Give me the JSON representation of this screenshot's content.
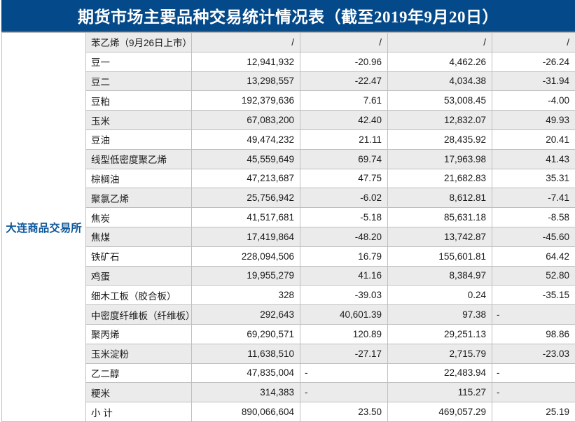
{
  "title": "期货市场主要品种交易统计情况表（截至2019年9月20日）",
  "exchange": "大连商品交易所",
  "colors": {
    "header_bg": "#04498A",
    "header_text": "#FFFFFF",
    "exchange_text": "#10589B",
    "alt_row_bg": "#EBEBEB",
    "grid_line": "#BFBFBF",
    "cell_text": "#1A1A1A"
  },
  "table": {
    "rows": [
      {
        "name": "苯乙烯（9月26日上市）",
        "volume": "/",
        "volume_chg": "/",
        "turnover": "/",
        "turnover_chg": "/"
      },
      {
        "name": "豆一",
        "volume": "12,941,932",
        "volume_chg": "-20.96",
        "turnover": "4,462.26",
        "turnover_chg": "-26.24"
      },
      {
        "name": "豆二",
        "volume": "13,298,557",
        "volume_chg": "-22.47",
        "turnover": "4,034.38",
        "turnover_chg": "-31.94"
      },
      {
        "name": "豆粕",
        "volume": "192,379,636",
        "volume_chg": "7.61",
        "turnover": "53,008.45",
        "turnover_chg": "-4.00"
      },
      {
        "name": "玉米",
        "volume": "67,083,200",
        "volume_chg": "42.40",
        "turnover": "12,832.07",
        "turnover_chg": "49.93"
      },
      {
        "name": "豆油",
        "volume": "49,474,232",
        "volume_chg": "21.11",
        "turnover": "28,435.92",
        "turnover_chg": "20.41"
      },
      {
        "name": "线型低密度聚乙烯",
        "volume": "45,559,649",
        "volume_chg": "69.74",
        "turnover": "17,963.98",
        "turnover_chg": "41.43"
      },
      {
        "name": "棕榈油",
        "volume": "47,213,687",
        "volume_chg": "47.75",
        "turnover": "21,682.83",
        "turnover_chg": "35.31"
      },
      {
        "name": "聚氯乙烯",
        "volume": "25,756,942",
        "volume_chg": "-6.02",
        "turnover": "8,612.81",
        "turnover_chg": "-7.41"
      },
      {
        "name": "焦炭",
        "volume": "41,517,681",
        "volume_chg": "-5.18",
        "turnover": "85,631.18",
        "turnover_chg": "-8.58"
      },
      {
        "name": "焦煤",
        "volume": "17,419,864",
        "volume_chg": "-48.20",
        "turnover": "13,742.87",
        "turnover_chg": "-45.60"
      },
      {
        "name": "铁矿石",
        "volume": "228,094,506",
        "volume_chg": "16.79",
        "turnover": "155,601.81",
        "turnover_chg": "64.42"
      },
      {
        "name": "鸡蛋",
        "volume": "19,955,279",
        "volume_chg": "41.16",
        "turnover": "8,384.97",
        "turnover_chg": "52.80"
      },
      {
        "name": "细木工板（胶合板）",
        "volume": "328",
        "volume_chg": "-39.03",
        "turnover": "0.24",
        "turnover_chg": "-35.15"
      },
      {
        "name": "中密度纤维板（纤维板）",
        "volume": "292,643",
        "volume_chg": "40,601.39",
        "turnover": "97.38",
        "turnover_chg": "-"
      },
      {
        "name": "聚丙烯",
        "volume": "69,290,571",
        "volume_chg": "120.89",
        "turnover": "29,251.13",
        "turnover_chg": "98.86"
      },
      {
        "name": "玉米淀粉",
        "volume": "11,638,510",
        "volume_chg": "-27.17",
        "turnover": "2,715.79",
        "turnover_chg": "-23.03"
      },
      {
        "name": "乙二醇",
        "volume": "47,835,004",
        "volume_chg": "-",
        "turnover": "22,483.94",
        "turnover_chg": "-"
      },
      {
        "name": "粳米",
        "volume": "314,383",
        "volume_chg": "-",
        "turnover": "115.27",
        "turnover_chg": "-"
      },
      {
        "name": "小 计",
        "volume": "890,066,604",
        "volume_chg": "23.50",
        "turnover": "469,057.29",
        "turnover_chg": "25.19"
      }
    ]
  }
}
